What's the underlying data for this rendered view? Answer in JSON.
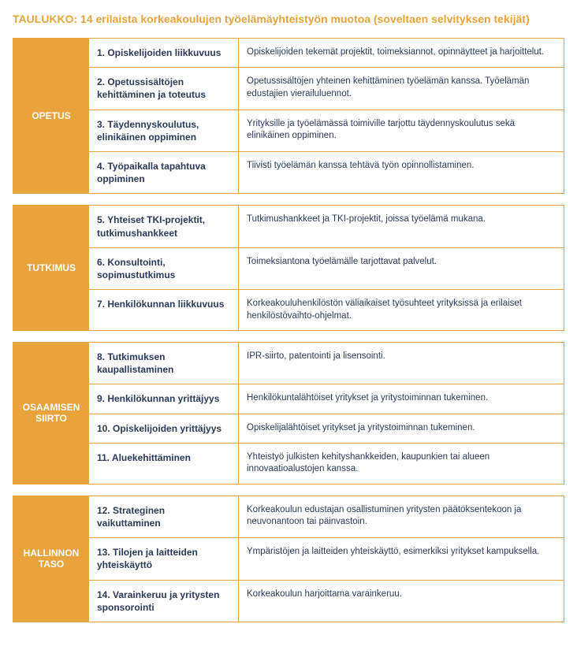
{
  "colors": {
    "accent": "#e8a33d",
    "text": "#2a3a5a",
    "background": "#ffffff",
    "category_text": "#ffffff"
  },
  "title": "TAULUKKO: 14 erilaista korkeakoulujen työelämäyhteistyön muotoa (soveltaen selvityksen tekijät)",
  "sections": [
    {
      "category": "OPETUS",
      "rows": [
        {
          "label": "1. Opiskelijoiden liikkuvuus",
          "desc": "Opiskelijoiden tekemät projektit, toimeksiannot, opinnäytteet ja harjoittelut."
        },
        {
          "label": "2. Opetussisältöjen kehittäminen ja toteutus",
          "desc": "Opetussisältöjen yhteinen kehittäminen työelämän kanssa. Työelämän edustajien vierailuluennot."
        },
        {
          "label": "3. Täydennyskoulutus, elinikäinen oppiminen",
          "desc": "Yrityksille ja työelämässä toimiville tarjottu täydennyskoulutus sekä elinikäinen oppiminen."
        },
        {
          "label": "4. Työpaikalla tapahtuva oppiminen",
          "desc": "Tiivisti työelämän kanssa tehtävä työn opinnollistaminen."
        }
      ]
    },
    {
      "category": "TUTKIMUS",
      "rows": [
        {
          "label": "5. Yhteiset TKI-projektit, tutkimushankkeet",
          "desc": "Tutkimushankkeet ja TKI-projektit, joissa työelämä mukana."
        },
        {
          "label": "6. Konsultointi, sopimustutkimus",
          "desc": "Toimeksiantona työelämälle tarjottavat palvelut."
        },
        {
          "label": "7. Henkilökunnan liikkuvuus",
          "desc": "Korkeakouluhenkilöstön väliaikaiset työsuhteet yrityksissä ja erilaiset henkilöstövaihto-ohjelmat."
        }
      ]
    },
    {
      "category": "OSAAMISEN SIIRTO",
      "rows": [
        {
          "label": "8. Tutkimuksen kaupallistaminen",
          "desc": "IPR-siirto, patentointi ja lisensointi."
        },
        {
          "label": "9. Henkilökunnan yrittäjyys",
          "desc": "Henkilökuntalähtöiset yritykset ja yritystoiminnan tukeminen."
        },
        {
          "label": "10. Opiskelijoiden yrittäjyys",
          "desc": "Opiskelijalähtöiset yritykset ja yritystoiminnan tukeminen."
        },
        {
          "label": "11. Aluekehittäminen",
          "desc": "Yhteistyö julkisten kehityshankkeiden, kaupunkien tai alueen innovaatioalustojen kanssa."
        }
      ]
    },
    {
      "category": "HALLINNON TASO",
      "rows": [
        {
          "label": "12. Strateginen vaikuttaminen",
          "desc": "Korkeakoulun edustajan osallistuminen yritysten päätöksentekoon ja neuvonantoon tai päinvastoin."
        },
        {
          "label": "13. Tilojen ja laitteiden yhteiskäyttö",
          "desc": "Ympäristöjen ja laitteiden yhteiskäyttö, esimerkiksi yritykset kampuksella."
        },
        {
          "label": "14. Varainkeruu ja yritysten sponsorointi",
          "desc": "Korkeakoulun harjoittama varainkeruu."
        }
      ]
    }
  ]
}
